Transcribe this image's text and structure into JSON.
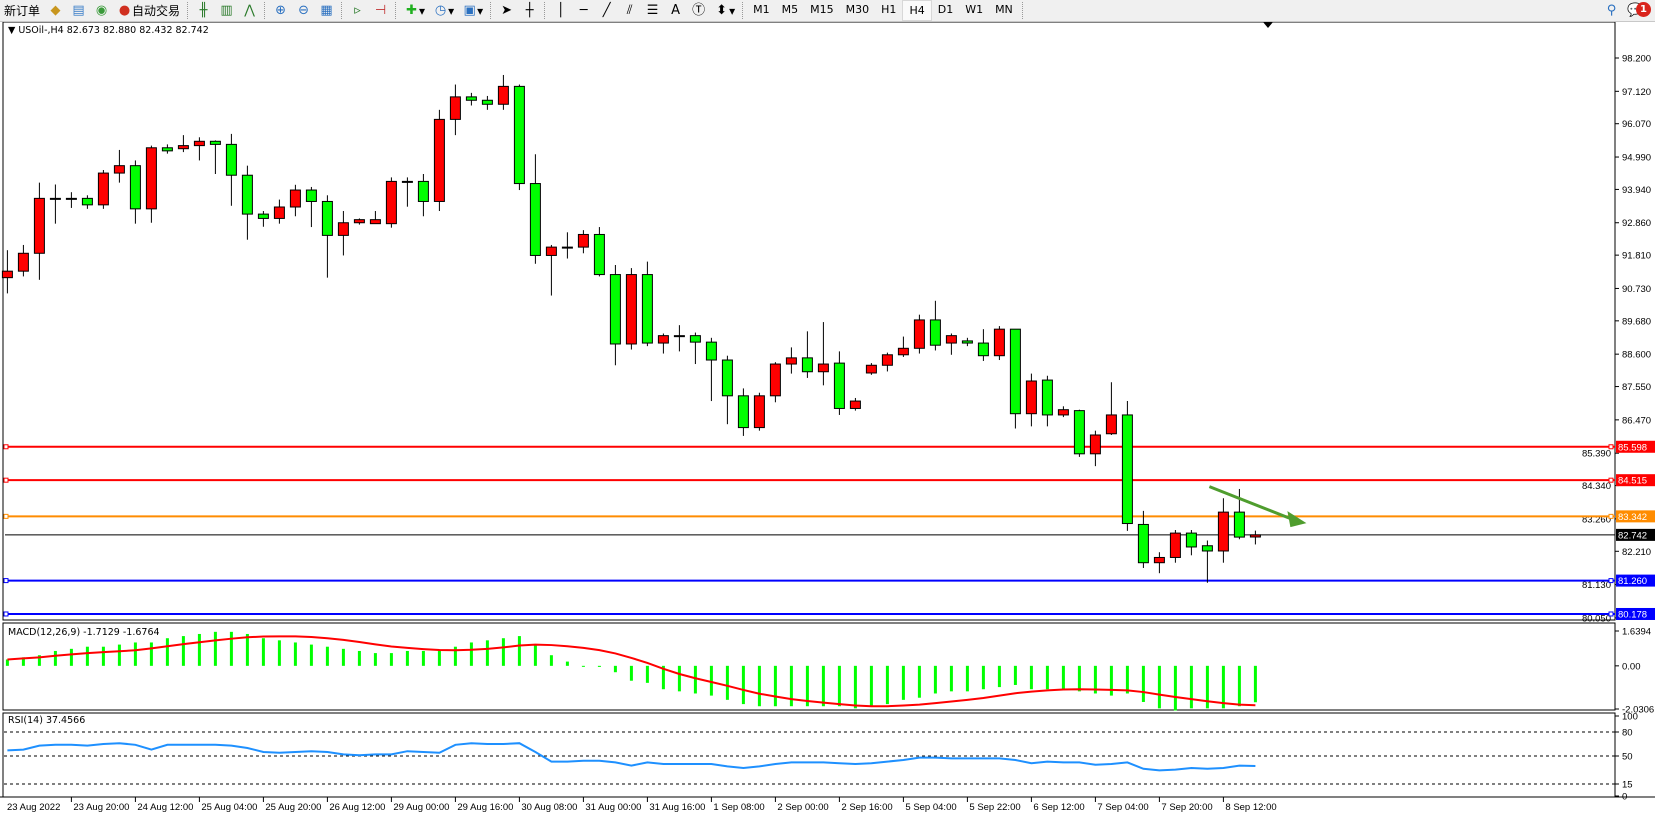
{
  "toolbar": {
    "new_order_label": "新订单",
    "auto_trading_label": "自动交易",
    "timeframes": [
      "M1",
      "M5",
      "M15",
      "M30",
      "H1",
      "H4",
      "D1",
      "W1",
      "MN"
    ],
    "active_timeframe": "H4",
    "notification_count": "1",
    "icons": [
      "new-order-icon",
      "market-watch-icon",
      "data-window-icon",
      "signals-icon",
      "auto-trading-icon",
      "bar-chart-icon",
      "candlestick-icon",
      "line-chart-icon",
      "zoom-in-icon",
      "zoom-out-icon",
      "tile-windows-icon",
      "auto-scroll-icon",
      "chart-shift-icon",
      "indicators-icon",
      "periods-icon",
      "templates-icon",
      "cursor-icon",
      "crosshair-icon",
      "vertical-line-icon",
      "horizontal-line-icon",
      "trendline-icon",
      "equidistant-channel-icon",
      "fibonacci-icon",
      "text-icon",
      "text-label-icon",
      "arrows-icon",
      "search-icon",
      "notification-icon"
    ]
  },
  "chart": {
    "header": "USOil-,H4  82.673 82.880 82.432 82.742",
    "colors": {
      "bull": "#ff0000",
      "bear": "#00ff00",
      "macd_hist": "#00ff00",
      "macd_signal": "#ff0000",
      "rsi": "#1e90ff",
      "arrow": "#4f9d2e"
    },
    "price_ticks": [
      "98.200",
      "97.120",
      "96.070",
      "94.990",
      "93.940",
      "92.860",
      "91.810",
      "90.730",
      "89.680",
      "88.600",
      "87.550",
      "86.470",
      "85.390",
      "84.340",
      "83.260",
      "82.210",
      "81.130",
      "80.050"
    ],
    "levels": [
      {
        "price": "85.598",
        "color": "#ff0000"
      },
      {
        "price": "84.515",
        "color": "#ff0000"
      },
      {
        "price": "83.342",
        "color": "#ff8c00"
      },
      {
        "price": "82.742",
        "color": "#000000"
      },
      {
        "price": "81.260",
        "color": "#0000ff"
      },
      {
        "price": "80.178",
        "color": "#0000ff"
      }
    ],
    "time_labels": [
      "23 Aug 2022",
      "23 Aug 20:00",
      "24 Aug 12:00",
      "25 Aug 04:00",
      "25 Aug 20:00",
      "26 Aug 12:00",
      "29 Aug 00:00",
      "29 Aug 16:00",
      "30 Aug 08:00",
      "31 Aug 00:00",
      "31 Aug 16:00",
      "1 Sep 08:00",
      "2 Sep 00:00",
      "2 Sep 16:00",
      "5 Sep 04:00",
      "5 Sep 22:00",
      "6 Sep 12:00",
      "7 Sep 04:00",
      "7 Sep 20:00",
      "8 Sep 12:00"
    ],
    "annotation": {
      "type": "arrow",
      "direction": "down-right",
      "from_price": 84.5,
      "to_price": 83.35
    }
  },
  "chart_data": {
    "type": "candlestick",
    "symbol": "USOil-",
    "timeframe": "H4",
    "first_bar": "23 Aug 2022 04:00",
    "ohlc": [
      [
        91.08,
        91.97,
        90.57,
        91.29
      ],
      [
        91.29,
        92.14,
        91.12,
        91.87
      ],
      [
        91.87,
        94.16,
        91.01,
        93.65
      ],
      [
        93.65,
        94.1,
        92.83,
        93.65
      ],
      [
        93.65,
        93.85,
        93.34,
        93.65
      ],
      [
        93.65,
        93.75,
        93.31,
        93.44
      ],
      [
        93.44,
        94.57,
        93.31,
        94.47
      ],
      [
        94.47,
        95.22,
        94.16,
        94.71
      ],
      [
        94.71,
        94.88,
        92.83,
        93.31
      ],
      [
        93.31,
        95.36,
        92.86,
        95.29
      ],
      [
        95.29,
        95.4,
        95.1,
        95.19
      ],
      [
        95.26,
        95.7,
        95.15,
        95.36
      ],
      [
        95.36,
        95.63,
        94.88,
        95.5
      ],
      [
        95.5,
        95.53,
        94.44,
        95.4
      ],
      [
        95.4,
        95.74,
        93.41,
        94.4
      ],
      [
        94.4,
        94.71,
        92.31,
        93.14
      ],
      [
        93.14,
        93.24,
        92.73,
        93.0
      ],
      [
        93.0,
        93.61,
        92.83,
        93.37
      ],
      [
        93.37,
        94.09,
        93.07,
        93.92
      ],
      [
        93.92,
        94.02,
        92.72,
        93.55
      ],
      [
        93.55,
        93.75,
        91.08,
        92.45
      ],
      [
        92.45,
        93.24,
        91.8,
        92.86
      ],
      [
        92.86,
        93.0,
        92.8,
        92.96
      ],
      [
        92.83,
        93.24,
        92.83,
        92.96
      ],
      [
        92.83,
        94.33,
        92.7,
        94.2
      ],
      [
        94.2,
        94.33,
        93.38,
        94.2
      ],
      [
        94.2,
        94.44,
        93.07,
        93.55
      ],
      [
        93.55,
        96.52,
        93.24,
        96.21
      ],
      [
        96.21,
        97.34,
        95.7,
        96.94
      ],
      [
        96.94,
        97.07,
        96.66,
        96.83
      ],
      [
        96.83,
        96.97,
        96.52,
        96.7
      ],
      [
        96.7,
        97.65,
        96.52,
        97.28
      ],
      [
        97.28,
        97.34,
        93.92,
        94.13
      ],
      [
        94.13,
        95.08,
        91.53,
        91.8
      ],
      [
        91.8,
        92.14,
        90.5,
        92.07
      ],
      [
        92.07,
        92.55,
        91.7,
        92.07
      ],
      [
        92.07,
        92.62,
        91.87,
        92.48
      ],
      [
        92.48,
        92.72,
        91.12,
        91.18
      ],
      [
        91.18,
        91.49,
        88.24,
        88.93
      ],
      [
        88.93,
        91.39,
        88.75,
        91.18
      ],
      [
        91.18,
        91.6,
        88.86,
        88.96
      ],
      [
        88.96,
        89.27,
        88.62,
        89.2
      ],
      [
        89.2,
        89.54,
        88.69,
        89.2
      ],
      [
        89.2,
        89.3,
        88.28,
        88.99
      ],
      [
        88.99,
        89.13,
        87.08,
        88.41
      ],
      [
        88.41,
        88.55,
        86.33,
        87.25
      ],
      [
        87.25,
        87.49,
        85.95,
        86.22
      ],
      [
        86.22,
        87.35,
        86.12,
        87.25
      ],
      [
        87.25,
        88.34,
        87.04,
        88.28
      ],
      [
        88.28,
        88.82,
        87.97,
        88.48
      ],
      [
        88.48,
        89.34,
        87.83,
        88.03
      ],
      [
        88.03,
        89.64,
        87.59,
        88.28
      ],
      [
        88.31,
        88.69,
        86.63,
        86.84
      ],
      [
        86.84,
        87.18,
        86.77,
        87.08
      ],
      [
        87.99,
        88.31,
        87.93,
        88.24
      ],
      [
        88.24,
        88.65,
        88.04,
        88.58
      ],
      [
        88.58,
        89.17,
        88.51,
        88.79
      ],
      [
        88.79,
        89.88,
        88.62,
        89.71
      ],
      [
        89.71,
        90.33,
        88.72,
        88.89
      ],
      [
        88.96,
        89.27,
        88.58,
        89.2
      ],
      [
        89.03,
        89.13,
        88.86,
        88.96
      ],
      [
        88.96,
        89.41,
        88.38,
        88.55
      ],
      [
        88.55,
        89.51,
        88.41,
        89.41
      ],
      [
        89.41,
        89.41,
        86.19,
        86.67
      ],
      [
        86.67,
        87.97,
        86.26,
        87.73
      ],
      [
        87.76,
        87.9,
        86.26,
        86.63
      ],
      [
        86.63,
        86.91,
        86.56,
        86.8
      ],
      [
        86.77,
        86.8,
        85.27,
        85.37
      ],
      [
        85.37,
        86.12,
        84.97,
        85.98
      ],
      [
        86.02,
        87.69,
        85.98,
        86.63
      ],
      [
        86.63,
        87.08,
        82.87,
        83.11
      ],
      [
        83.08,
        83.52,
        81.67,
        81.84
      ],
      [
        81.84,
        82.18,
        81.5,
        82.01
      ],
      [
        82.01,
        82.9,
        81.84,
        82.8
      ],
      [
        82.8,
        82.9,
        82.08,
        82.35
      ],
      [
        82.39,
        82.56,
        81.19,
        82.22
      ],
      [
        82.22,
        83.93,
        81.84,
        83.48
      ],
      [
        83.48,
        84.23,
        82.6,
        82.67
      ],
      [
        82.673,
        82.88,
        82.432,
        82.742
      ]
    ],
    "price_range": [
      79.9,
      99.0
    ],
    "macd": {
      "label": "MACD(12,26,9) -1.7129 -1.6764",
      "ticks": [
        "1.6394",
        "0.00",
        "-2.0306"
      ],
      "main": [
        0.3,
        0.4,
        0.5,
        0.7,
        0.8,
        0.9,
        0.9,
        1.0,
        1.1,
        1.1,
        1.3,
        1.4,
        1.5,
        1.6,
        1.6,
        1.5,
        1.3,
        1.2,
        1.1,
        1.0,
        0.9,
        0.8,
        0.7,
        0.6,
        0.6,
        0.7,
        0.7,
        0.7,
        0.9,
        1.1,
        1.2,
        1.3,
        1.4,
        1.0,
        0.5,
        0.2,
        0.0,
        -0.05,
        -0.3,
        -0.7,
        -0.8,
        -1.1,
        -1.2,
        -1.3,
        -1.4,
        -1.6,
        -1.8,
        -1.9,
        -1.9,
        -1.9,
        -1.9,
        -1.9,
        -1.9,
        -2.0,
        -1.9,
        -1.8,
        -1.6,
        -1.5,
        -1.3,
        -1.2,
        -1.2,
        -1.1,
        -1.0,
        -0.9,
        -1.1,
        -1.1,
        -1.1,
        -1.2,
        -1.3,
        -1.4,
        -1.3,
        -1.7,
        -2.0,
        -2.1,
        -2.0,
        -2.0,
        -2.0,
        -1.9,
        -1.7129
      ],
      "range": [
        -2.0306,
        1.6394
      ]
    },
    "rsi": {
      "label": "RSI(14) 37.4566",
      "ticks": [
        "100",
        "80",
        "50",
        "15",
        "0"
      ],
      "levels": [
        80,
        50,
        15
      ],
      "values": [
        57,
        58,
        63,
        64,
        64,
        63,
        65,
        66,
        64,
        58,
        64,
        64,
        64,
        64,
        63,
        60,
        55,
        54,
        55,
        56,
        55,
        52,
        51,
        52,
        52,
        56,
        55,
        54,
        64,
        66,
        65,
        65,
        66,
        55,
        43,
        43,
        44,
        44,
        42,
        38,
        42,
        40,
        40,
        40,
        40,
        37,
        35,
        37,
        40,
        42,
        42,
        42,
        41,
        40,
        41,
        43,
        45,
        48,
        48,
        47,
        47,
        47,
        47,
        45,
        41,
        43,
        42,
        42,
        39,
        40,
        42,
        34,
        32,
        33,
        35,
        34,
        35,
        38,
        37.4566
      ]
    }
  }
}
